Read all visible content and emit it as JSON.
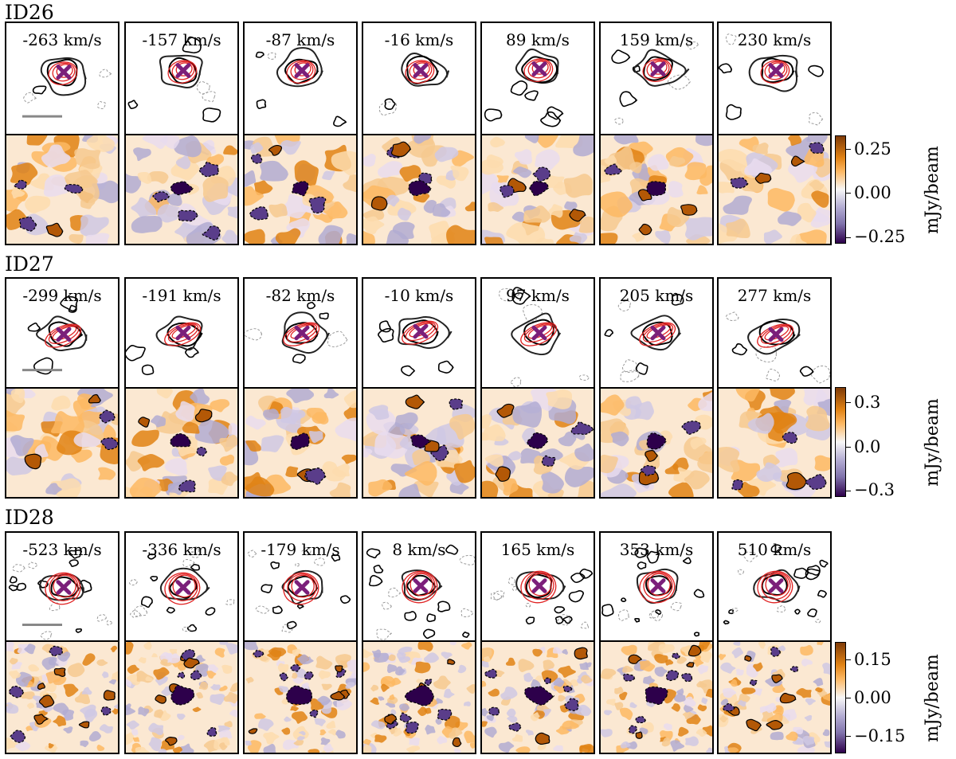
{
  "colormap": {
    "positive": "#b35806",
    "neutral": "#f7f7f7",
    "negative": "#2d004b"
  },
  "marker_color": "#7b1f7a",
  "model_contour_color": "#e02020",
  "groups": [
    {
      "id": "ID26",
      "velocities": [
        "-263 km/s",
        "-157 km/s",
        "-87 km/s",
        "-16 km/s",
        "89 km/s",
        "159 km/s",
        "230 km/s"
      ],
      "colorbar": {
        "title": "mJy/beam",
        "ticks": [
          "0.25",
          "0.00",
          "−0.25"
        ]
      }
    },
    {
      "id": "ID27",
      "velocities": [
        "-299 km/s",
        "-191 km/s",
        "-82 km/s",
        "-10 km/s",
        "97 km/s",
        "205 km/s",
        "277 km/s"
      ],
      "colorbar": {
        "title": "mJy/beam",
        "ticks": [
          "0.3",
          "0.0",
          "−0.3"
        ]
      }
    },
    {
      "id": "ID28",
      "velocities": [
        "-523 km/s",
        "-336 km/s",
        "-179 km/s",
        "8 km/s",
        "165 km/s",
        "353 km/s",
        "510 km/s"
      ],
      "colorbar": {
        "title": "mJy/beam",
        "ticks": [
          "0.15",
          "0.00",
          "−0.15"
        ]
      }
    }
  ]
}
